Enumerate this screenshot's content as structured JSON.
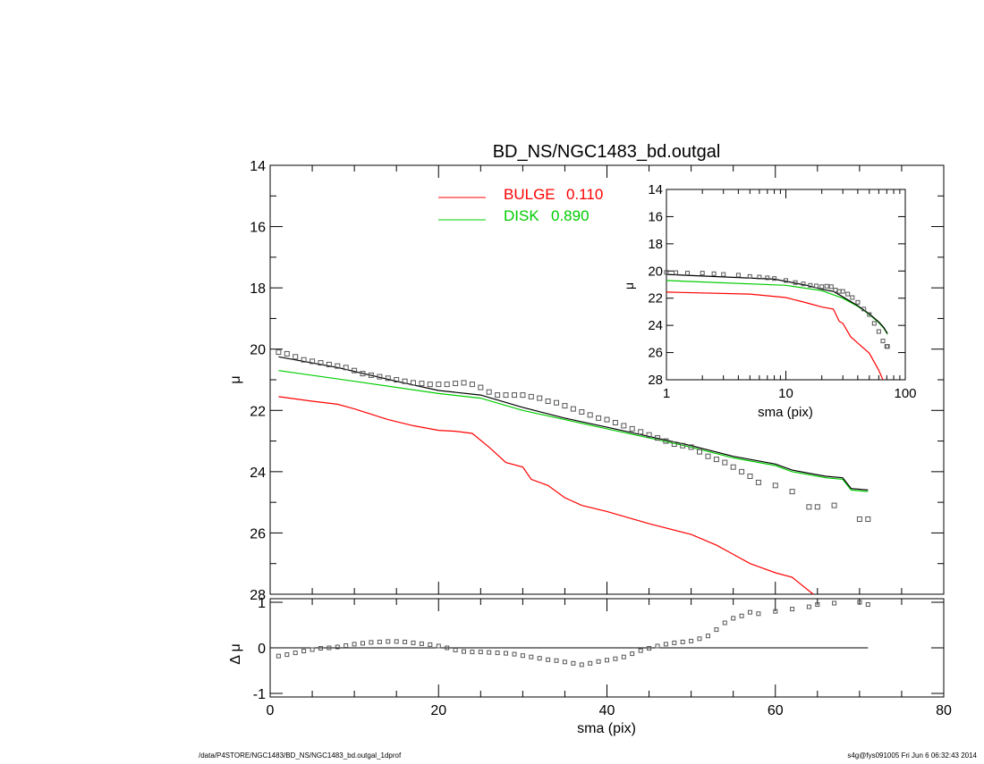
{
  "title": "BD_NS/NGC1483_bd.outgal",
  "footer": {
    "left": "/data/P4STORE/NGC1483/BD_NS/NGC1483_bd.outgal_1dprof",
    "right": "s4g@fys091005  Fri Jun  6 06:32:43 2014"
  },
  "colors": {
    "bulge": "#ff0000",
    "disk": "#00cc00",
    "total": "#000000",
    "data": "#555555"
  },
  "chart_data": [
    {
      "panel": "main",
      "type": "line",
      "title": "BD_NS/NGC1483_bd.outgal",
      "ylabel": "μ",
      "xlim": [
        0,
        80
      ],
      "ylim": [
        28,
        14
      ],
      "y_inverted": true,
      "yticks": [
        14,
        16,
        18,
        20,
        22,
        24,
        26,
        28
      ],
      "legend": {
        "placement": "top-center",
        "entries": [
          {
            "name": "BULGE",
            "value": "0.110",
            "color": "#ff0000"
          },
          {
            "name": "DISK",
            "value": "0.890",
            "color": "#00cc00"
          }
        ]
      },
      "series": [
        {
          "name": "BULGE",
          "style": "line",
          "color": "#ff0000",
          "x": [
            1,
            5,
            8,
            10,
            14,
            17,
            20,
            22,
            24,
            26,
            28,
            30,
            31,
            33,
            35,
            37,
            40,
            45,
            50,
            53,
            55,
            57,
            60,
            62,
            64.5
          ],
          "y": [
            21.55,
            21.7,
            21.8,
            21.95,
            22.3,
            22.5,
            22.65,
            22.68,
            22.75,
            23.2,
            23.7,
            23.85,
            24.25,
            24.45,
            24.85,
            25.1,
            25.3,
            25.7,
            26.05,
            26.4,
            26.7,
            27.0,
            27.3,
            27.45,
            28.0
          ]
        },
        {
          "name": "DISK",
          "style": "line",
          "color": "#00cc00",
          "x": [
            1,
            10,
            20,
            25,
            30,
            35,
            40,
            45,
            50,
            55,
            60,
            62,
            64,
            66,
            68,
            69,
            71
          ],
          "y": [
            20.7,
            21.05,
            21.45,
            21.6,
            22.0,
            22.3,
            22.6,
            22.9,
            23.2,
            23.55,
            23.8,
            24.0,
            24.1,
            24.2,
            24.25,
            24.6,
            24.65
          ]
        },
        {
          "name": "TOTAL",
          "style": "line",
          "color": "#000000",
          "x": [
            1,
            8,
            15,
            20,
            25,
            30,
            35,
            40,
            45,
            50,
            55,
            60,
            62,
            64,
            66,
            68,
            69,
            71
          ],
          "y": [
            20.25,
            20.6,
            21.05,
            21.35,
            21.5,
            21.9,
            22.25,
            22.55,
            22.85,
            23.15,
            23.5,
            23.75,
            23.95,
            24.05,
            24.15,
            24.2,
            24.55,
            24.6
          ]
        },
        {
          "name": "DATA",
          "style": "markers",
          "color": "#555555",
          "x": [
            1,
            2,
            3,
            4,
            5,
            6,
            7,
            8,
            9,
            10,
            11,
            12,
            13,
            14,
            15,
            16,
            17,
            18,
            19,
            20,
            21,
            22,
            23,
            24,
            25,
            26,
            27,
            28,
            29,
            30,
            31,
            32,
            33,
            34,
            35,
            36,
            37,
            38,
            39,
            40,
            41,
            42,
            43,
            44,
            45,
            46,
            47,
            48,
            49,
            50,
            51,
            52,
            53,
            54,
            55,
            56,
            57,
            58,
            60,
            62,
            64,
            65,
            67,
            70,
            71
          ],
          "y": [
            20.1,
            20.15,
            20.25,
            20.35,
            20.4,
            20.45,
            20.5,
            20.55,
            20.6,
            20.7,
            20.8,
            20.85,
            20.9,
            20.95,
            21.0,
            21.05,
            21.1,
            21.12,
            21.15,
            21.15,
            21.15,
            21.12,
            21.1,
            21.15,
            21.25,
            21.4,
            21.5,
            21.5,
            21.5,
            21.5,
            21.55,
            21.6,
            21.7,
            21.75,
            21.85,
            21.95,
            22.05,
            22.15,
            22.25,
            22.3,
            22.4,
            22.5,
            22.6,
            22.7,
            22.8,
            22.9,
            23.0,
            23.1,
            23.15,
            23.2,
            23.35,
            23.5,
            23.6,
            23.7,
            23.85,
            24.0,
            24.15,
            24.35,
            24.45,
            24.65,
            25.15,
            25.15,
            25.1,
            25.55,
            25.55
          ]
        }
      ]
    },
    {
      "panel": "residual",
      "type": "scatter",
      "xlabel": "sma (pix)",
      "ylabel": "Δ μ",
      "xlim": [
        0,
        80
      ],
      "ylim": [
        -1,
        1
      ],
      "xticks": [
        0,
        20,
        40,
        60,
        80
      ],
      "yticks": [
        -1,
        0,
        1
      ],
      "zero_line": {
        "x": [
          0,
          71
        ],
        "y": 0
      },
      "series": [
        {
          "name": "RESIDUAL",
          "style": "markers",
          "color": "#555555",
          "x": [
            1,
            2,
            3,
            4,
            5,
            6,
            7,
            8,
            9,
            10,
            11,
            12,
            13,
            14,
            15,
            16,
            17,
            18,
            19,
            20,
            21,
            22,
            23,
            24,
            25,
            26,
            27,
            28,
            29,
            30,
            31,
            32,
            33,
            34,
            35,
            36,
            37,
            38,
            39,
            40,
            41,
            42,
            43,
            44,
            45,
            46,
            47,
            48,
            49,
            50,
            51,
            52,
            53,
            54,
            55,
            56,
            57,
            58,
            60,
            62,
            64,
            65,
            67,
            70,
            71
          ],
          "y": [
            -0.18,
            -0.15,
            -0.11,
            -0.07,
            -0.04,
            -0.01,
            0.0,
            0.02,
            0.05,
            0.08,
            0.1,
            0.12,
            0.13,
            0.14,
            0.14,
            0.13,
            0.11,
            0.09,
            0.07,
            0.04,
            0.0,
            -0.05,
            -0.08,
            -0.09,
            -0.09,
            -0.1,
            -0.11,
            -0.12,
            -0.14,
            -0.17,
            -0.2,
            -0.23,
            -0.26,
            -0.28,
            -0.31,
            -0.34,
            -0.37,
            -0.34,
            -0.3,
            -0.27,
            -0.24,
            -0.2,
            -0.13,
            -0.06,
            -0.01,
            0.04,
            0.08,
            0.11,
            0.13,
            0.15,
            0.2,
            0.26,
            0.4,
            0.55,
            0.65,
            0.7,
            0.78,
            0.75,
            0.8,
            0.85,
            0.9,
            0.95,
            0.98,
            1.0,
            0.95
          ]
        }
      ]
    },
    {
      "panel": "inset",
      "type": "line",
      "xlabel": "sma (pix)",
      "ylabel": "μ",
      "xscale": "log",
      "xlim": [
        1,
        100
      ],
      "ylim": [
        28,
        14
      ],
      "y_inverted": true,
      "xticks": [
        1,
        10,
        100
      ],
      "yticks": [
        14,
        16,
        18,
        20,
        22,
        24,
        26,
        28
      ],
      "series": [
        {
          "name": "BULGE",
          "style": "line",
          "color": "#ff0000",
          "x": [
            1,
            5,
            10,
            15,
            20,
            25,
            28,
            30,
            35,
            40,
            50,
            60,
            65
          ],
          "y": [
            21.55,
            21.7,
            21.95,
            22.35,
            22.65,
            22.8,
            23.7,
            23.85,
            24.85,
            25.3,
            26.05,
            27.3,
            28.0
          ]
        },
        {
          "name": "DISK",
          "style": "line",
          "color": "#00cc00",
          "x": [
            1,
            10,
            20,
            30,
            40,
            50,
            60,
            66,
            71
          ],
          "y": [
            20.7,
            21.05,
            21.45,
            22.0,
            22.6,
            23.2,
            23.8,
            24.2,
            24.65
          ]
        },
        {
          "name": "TOTAL",
          "style": "line",
          "color": "#000000",
          "x": [
            1,
            8,
            15,
            20,
            25,
            30,
            40,
            50,
            60,
            66,
            71
          ],
          "y": [
            20.25,
            20.6,
            21.05,
            21.35,
            21.5,
            21.9,
            22.55,
            23.15,
            23.75,
            24.15,
            24.6
          ]
        },
        {
          "name": "DATA",
          "style": "markers",
          "color": "#555555",
          "x": [
            1,
            1.2,
            1.5,
            2,
            2.5,
            3,
            4,
            5,
            6,
            7,
            8,
            10,
            12,
            14,
            16,
            18,
            20,
            22,
            24,
            26,
            28,
            30,
            33,
            36,
            40,
            45,
            50,
            55,
            60,
            65,
            70,
            71
          ],
          "y": [
            20.1,
            20.12,
            20.15,
            20.15,
            20.2,
            20.25,
            20.3,
            20.4,
            20.45,
            20.5,
            20.55,
            20.7,
            20.85,
            20.95,
            21.05,
            21.1,
            21.15,
            21.12,
            21.15,
            21.4,
            21.5,
            21.5,
            21.7,
            21.95,
            22.3,
            22.8,
            23.2,
            23.85,
            24.45,
            25.15,
            25.55,
            25.55
          ]
        }
      ]
    }
  ]
}
